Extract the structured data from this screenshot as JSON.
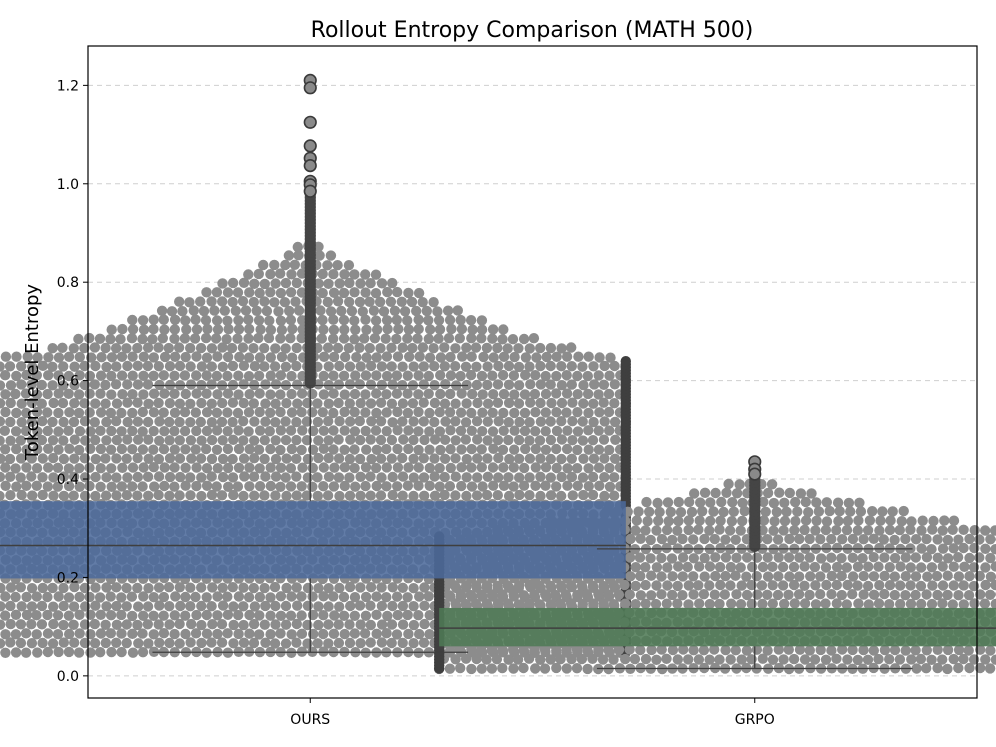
{
  "chart_data": {
    "type": "box-swarm",
    "title": "Rollout Entropy Comparison (MATH 500)",
    "xlabel": "",
    "ylabel": "Token-level Entropy",
    "ylim": [
      -0.045,
      1.28
    ],
    "yticks": [
      0.0,
      0.2,
      0.4,
      0.6,
      0.8,
      1.0,
      1.2
    ],
    "ytick_labels": [
      "0.0",
      "0.2",
      "0.4",
      "0.6",
      "0.8",
      "1.0",
      "1.2"
    ],
    "grid": "horizontal-dashed",
    "categories": [
      "OURS",
      "GRPO"
    ],
    "series": [
      {
        "name": "OURS",
        "box_color": "#4c6a9b",
        "whisker_low": 0.048,
        "q1": 0.198,
        "median": 0.265,
        "q3": 0.355,
        "whisker_high": 0.59,
        "data_min": 0.048,
        "data_max": 1.21,
        "outliers": [
          1.21,
          1.195,
          1.125,
          1.077,
          1.052,
          1.037,
          1.005,
          0.998,
          0.985
        ],
        "swarm_half_width": 0.71
      },
      {
        "name": "GRPO",
        "box_color": "#4f7a55",
        "whisker_low": 0.015,
        "q1": 0.06,
        "median": 0.097,
        "q3": 0.138,
        "whisker_high": 0.258,
        "data_min": 0.015,
        "data_max": 0.435,
        "outliers": [
          0.435,
          0.42,
          0.41
        ],
        "swarm_half_width": 0.71
      }
    ],
    "point_color": "#8c8c8c",
    "edge_color": "#3f3f3f"
  }
}
